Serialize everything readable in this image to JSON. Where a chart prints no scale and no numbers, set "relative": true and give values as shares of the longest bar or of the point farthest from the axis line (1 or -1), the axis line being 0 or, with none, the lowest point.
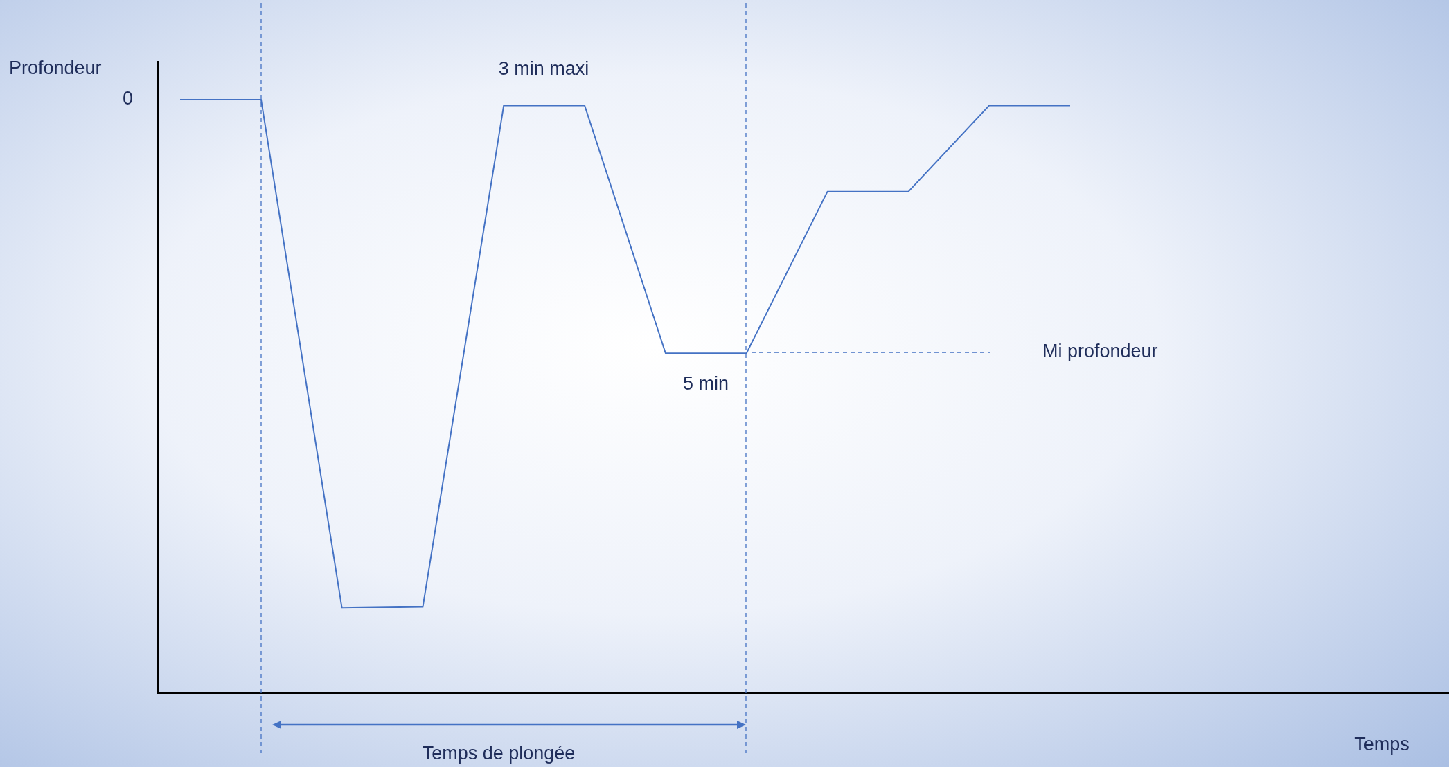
{
  "chart_data": {
    "type": "line",
    "relative": true,
    "ylabel": "Profondeur",
    "line_style": "solid",
    "categories": [
      null,
      null,
      null,
      null,
      null,
      null,
      null,
      null,
      null,
      null,
      null,
      null
    ],
    "series": [
      {
        "color": "#4472c4",
        "values": [
          1,
          1,
          0.143,
          0.145,
          0.989,
          0.989,
          0.572,
          0.572,
          0.844,
          0.844,
          0.989,
          0.989
        ]
      }
    ],
    "annotations": [
      "0",
      "3 min maxi",
      "5 min",
      "Mi profondeur",
      "Temps de plongée",
      "Temps"
    ]
  }
}
